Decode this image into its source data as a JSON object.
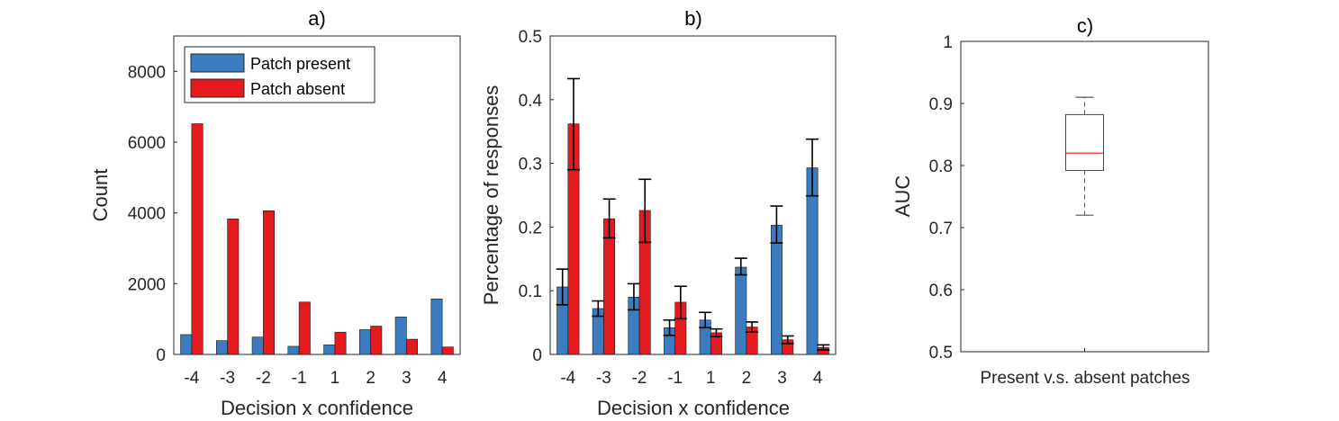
{
  "colors": {
    "present": "#3a7cbf",
    "absent": "#e41a1c",
    "errorbar": "#000000",
    "box": "#3a3acc",
    "median": "#e41a1c",
    "whisker": "#555555"
  },
  "chart_data": [
    {
      "type": "bar",
      "title": "a)",
      "xlabel": "Decision x confidence",
      "ylabel": "Count",
      "categories": [
        "-4",
        "-3",
        "-2",
        "-1",
        "1",
        "2",
        "3",
        "4"
      ],
      "ylim": [
        0,
        9000
      ],
      "yticks": [
        "0",
        "2000",
        "4000",
        "6000",
        "8000"
      ],
      "legend": {
        "placement": "top-left",
        "entries": [
          "Patch present",
          "Patch absent"
        ]
      },
      "series": [
        {
          "name": "Patch present",
          "values": [
            560,
            390,
            490,
            230,
            270,
            700,
            1060,
            1570
          ]
        },
        {
          "name": "Patch absent",
          "values": [
            6520,
            3830,
            4060,
            1480,
            630,
            800,
            430,
            210
          ]
        }
      ]
    },
    {
      "type": "bar",
      "title": "b)",
      "xlabel": "Decision x confidence",
      "ylabel": "Percentage of responses",
      "categories": [
        "-4",
        "-3",
        "-2",
        "-1",
        "1",
        "2",
        "3",
        "4"
      ],
      "ylim": [
        0,
        0.5
      ],
      "yticks": [
        "0",
        "0.1",
        "0.2",
        "0.3",
        "0.4",
        "0.5"
      ],
      "series": [
        {
          "name": "Patch present",
          "values": [
            0.106,
            0.072,
            0.09,
            0.042,
            0.054,
            0.137,
            0.203,
            0.293
          ],
          "err_low": [
            0.078,
            0.06,
            0.07,
            0.03,
            0.042,
            0.125,
            0.175,
            0.249
          ],
          "err_high": [
            0.134,
            0.084,
            0.111,
            0.054,
            0.066,
            0.151,
            0.233,
            0.338
          ]
        },
        {
          "name": "Patch absent",
          "values": [
            0.362,
            0.213,
            0.226,
            0.082,
            0.034,
            0.043,
            0.023,
            0.011
          ],
          "err_low": [
            0.29,
            0.183,
            0.176,
            0.056,
            0.028,
            0.035,
            0.017,
            0.007
          ],
          "err_high": [
            0.433,
            0.244,
            0.275,
            0.107,
            0.04,
            0.051,
            0.029,
            0.015
          ]
        }
      ]
    },
    {
      "type": "box",
      "title": "c)",
      "xlabel": "",
      "ylabel": "AUC",
      "categories": [
        "Present v.s. absent patches"
      ],
      "ylim": [
        0.5,
        1
      ],
      "yticks": [
        "0.5",
        "0.6",
        "0.7",
        "0.8",
        "0.9",
        "1"
      ],
      "box": {
        "min": 0.72,
        "q1": 0.792,
        "median": 0.82,
        "q3": 0.882,
        "max": 0.91
      }
    }
  ]
}
